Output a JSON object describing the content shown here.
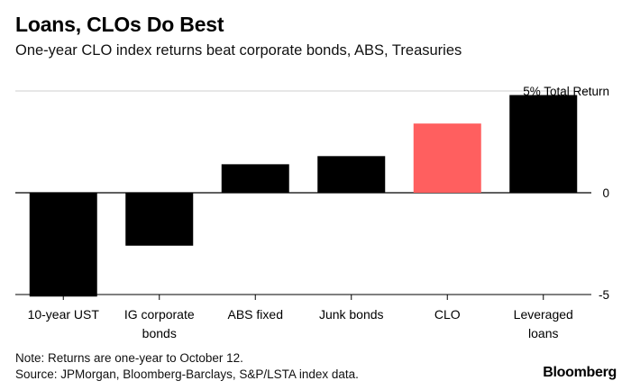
{
  "header": {
    "title": "Loans, CLOs Do Best",
    "subtitle": "One-year CLO index returns beat corporate bonds, ABS, Treasuries"
  },
  "footer": {
    "note": "Note: Returns are one-year to October 12.",
    "source": "Source: JPMorgan, Bloomberg-Barclays, S&P/LSTA index data.",
    "brand": "Bloomberg"
  },
  "chart_data": {
    "type": "bar",
    "title": "Loans, CLOs Do Best",
    "ylabel": "Total Return (%)",
    "ylim": [
      -5,
      5
    ],
    "yticks": [
      {
        "value": 5,
        "label": "5% Total Return"
      },
      {
        "value": 0,
        "label": "0"
      },
      {
        "value": -5,
        "label": "-5"
      }
    ],
    "categories": [
      [
        "10-year UST"
      ],
      [
        "IG corporate",
        "bonds"
      ],
      [
        "ABS fixed"
      ],
      [
        "Junk bonds"
      ],
      [
        "CLO"
      ],
      [
        "Leveraged",
        "loans"
      ]
    ],
    "values": [
      -5.1,
      -2.6,
      1.4,
      1.8,
      3.4,
      4.8
    ],
    "colors": [
      "#000000",
      "#000000",
      "#000000",
      "#000000",
      "#ff5f5f",
      "#000000"
    ],
    "highlight": "CLO",
    "grid": true
  }
}
